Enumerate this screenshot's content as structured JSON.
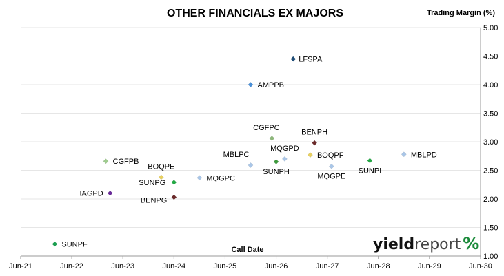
{
  "chart_data": {
    "type": "scatter",
    "title": "OTHER FINANCIALS EX MAJORS",
    "xlabel": "Call Date",
    "ylabel": "Trading Margin (%)",
    "x_ticks": [
      "Jun-21",
      "Jun-22",
      "Jun-23",
      "Jun-24",
      "Jun-25",
      "Jun-26",
      "Jun-27",
      "Jun-28",
      "Jun-29",
      "Jun-30"
    ],
    "xlim": [
      "2021-06",
      "2030-06"
    ],
    "ylim": [
      1.0,
      5.0
    ],
    "y_ticks": [
      "1.00",
      "1.50",
      "2.00",
      "2.50",
      "3.00",
      "3.50",
      "4.00",
      "4.50",
      "5.00"
    ],
    "y_axis_side": "right",
    "grid": "horizontal",
    "points": [
      {
        "label": "LFSPA",
        "x": "2026-10",
        "y": 4.45,
        "color": "#1f4e79"
      },
      {
        "label": "AMPPB",
        "x": "2025-12",
        "y": 4.0,
        "color": "#4a90d9"
      },
      {
        "label": "CGFPC",
        "x": "2026-05",
        "y": 3.06,
        "color": "#8db87a"
      },
      {
        "label": "BENPH",
        "x": "2027-03",
        "y": 2.98,
        "color": "#6b2a2a"
      },
      {
        "label": "MBLPC",
        "x": "2025-12",
        "y": 2.59,
        "color": "#a9c6e8"
      },
      {
        "label": "MQGPD",
        "x": "2026-08",
        "y": 2.7,
        "color": "#a9c6e8"
      },
      {
        "label": "SUNPH",
        "x": "2026-06",
        "y": 2.65,
        "color": "#3c9b3c"
      },
      {
        "label": "BOQPF",
        "x": "2027-02",
        "y": 2.77,
        "color": "#e8d060"
      },
      {
        "label": "MQGPE",
        "x": "2027-07",
        "y": 2.57,
        "color": "#a9c6e8"
      },
      {
        "label": "SUNPI",
        "x": "2028-04",
        "y": 2.67,
        "color": "#22aa44"
      },
      {
        "label": "MBLPD",
        "x": "2028-12",
        "y": 2.78,
        "color": "#a9c6e8"
      },
      {
        "label": "CGFPB",
        "x": "2023-02",
        "y": 2.66,
        "color": "#9fcc8f"
      },
      {
        "label": "BOQPE",
        "x": "2024-03",
        "y": 2.38,
        "color": "#e8d060"
      },
      {
        "label": "MQGPC",
        "x": "2024-12",
        "y": 2.37,
        "color": "#a9c6e8"
      },
      {
        "label": "SUNPG",
        "x": "2024-06",
        "y": 2.29,
        "color": "#22aa44"
      },
      {
        "label": "IAGPD",
        "x": "2023-03",
        "y": 2.1,
        "color": "#6a2a9a"
      },
      {
        "label": "BENPG",
        "x": "2024-06",
        "y": 2.03,
        "color": "#6b2a2a"
      },
      {
        "label": "SUNPF",
        "x": "2022-02",
        "y": 1.21,
        "color": "#1aa050"
      }
    ]
  },
  "logo": {
    "dark": "yield",
    "light": "report",
    "pct": "%"
  }
}
